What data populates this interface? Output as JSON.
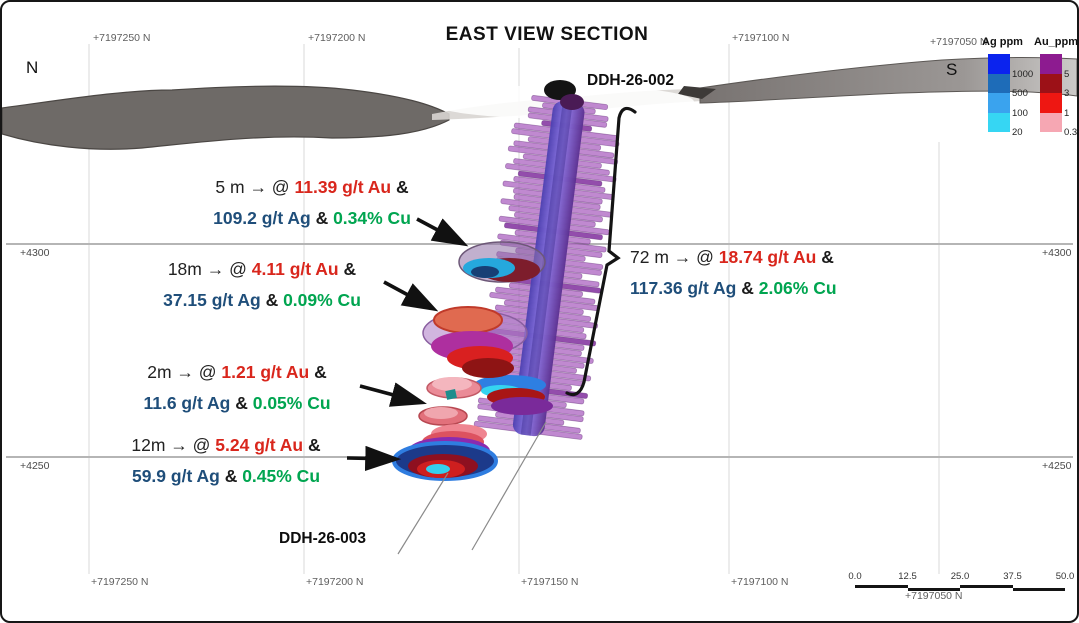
{
  "title": "EAST VIEW SECTION",
  "compass": {
    "left": "N",
    "right": "S"
  },
  "northings": {
    "top": [
      "+7197250 N",
      "+7197200 N",
      "+7197100 N",
      "+7197050 N"
    ],
    "bottom": [
      "+7197250 N",
      "+7197200 N",
      "+7197150 N",
      "+7197100 N",
      "+7197050 N"
    ]
  },
  "elevations": {
    "e4300": "+4300",
    "e4250": "+4250"
  },
  "holes": {
    "ddh002": "DDH-26-002",
    "ddh003": "DDH-26-003"
  },
  "intervals": [
    {
      "prefix": "5 m → @",
      "au": "11.39 g/t Au",
      "amp": "&",
      "ag": "109.2 g/t Ag",
      "cu": "0.34% Cu"
    },
    {
      "prefix": "18m → @",
      "au": "4.11 g/t Au",
      "amp": "&",
      "ag": "37.15 g/t Ag",
      "cu": "0.09% Cu"
    },
    {
      "prefix": "2m → @",
      "au": "1.21 g/t Au",
      "amp": "&",
      "ag": "11.6 g/t Ag",
      "cu": "0.05% Cu"
    },
    {
      "prefix": "12m → @",
      "au": "5.24 g/t Au",
      "amp": "&",
      "ag": "59.9 g/t Ag",
      "cu": "0.45% Cu"
    },
    {
      "prefix": "72 m → @",
      "au": "18.74 g/t Au",
      "amp": "&",
      "ag": "117.36 g/t Ag",
      "cu": "2.06% Cu"
    }
  ],
  "legend": {
    "ag": {
      "title": "Ag ppm",
      "ticks": [
        "1000",
        "500",
        "100",
        "20"
      ],
      "colors": [
        "#0b23ee",
        "#1e6cb8",
        "#3aa3ee",
        "#36d6f3"
      ]
    },
    "au": {
      "title": "Au_ppm",
      "ticks": [
        "5",
        "3",
        "1",
        "0.3"
      ],
      "colors": [
        "#8d1b90",
        "#9c1117",
        "#ee1712",
        "#f6a7b3"
      ]
    }
  },
  "scalebar": {
    "ticks": [
      "0.0",
      "12.5",
      "25.0",
      "37.5",
      "50.0"
    ]
  },
  "colors": {
    "au_text": "#d9261c",
    "ag_text": "#1f4e7a",
    "cu_text": "#00a550"
  }
}
